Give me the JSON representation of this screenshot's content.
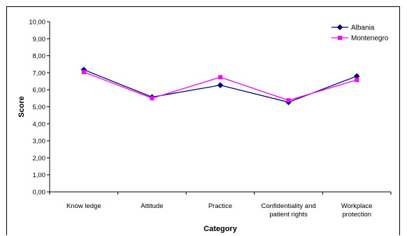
{
  "chart_data": {
    "type": "line",
    "categories": [
      [
        "Know ledge"
      ],
      [
        "Attitude"
      ],
      [
        "Practice"
      ],
      [
        "Confidentiality and",
        "patient rights"
      ],
      [
        "Workplace",
        "protection"
      ]
    ],
    "series": [
      {
        "name": "Albania",
        "values": [
          7.18,
          5.57,
          6.27,
          5.27,
          6.8
        ],
        "color": "#000080",
        "marker": "diamond"
      },
      {
        "name": "Montenegro",
        "values": [
          7.04,
          5.5,
          6.74,
          5.38,
          6.58
        ],
        "color": "#ff00ff",
        "marker": "square"
      }
    ],
    "xlabel": "Category",
    "ylabel": "Score",
    "ylim": [
      0,
      10
    ],
    "yticks": [
      "0,00",
      "1,00",
      "2,00",
      "3,00",
      "4,00",
      "5,00",
      "6,00",
      "7,00",
      "8,00",
      "9,00",
      "10,00"
    ],
    "grid": false,
    "legend_position": "top-right"
  }
}
